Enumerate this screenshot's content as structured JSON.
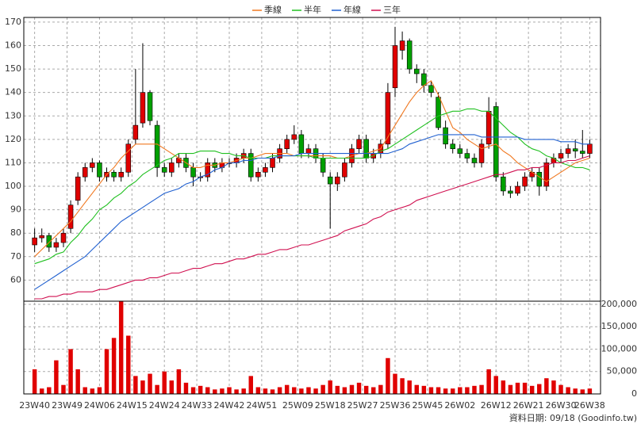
{
  "chart_data": [
    {
      "type": "candlestick",
      "x": [
        0,
        2,
        4,
        6,
        8,
        10,
        12,
        14,
        16,
        18,
        20,
        22,
        24,
        26,
        28,
        30,
        32,
        34,
        36,
        38,
        40,
        42,
        44,
        46,
        48,
        50,
        52,
        54,
        56,
        58,
        60,
        62,
        64,
        66,
        68,
        70,
        72,
        74,
        76,
        78,
        80,
        82,
        84,
        86,
        88,
        90,
        92,
        94,
        96,
        98,
        100,
        102,
        104,
        106,
        108,
        110,
        112,
        114,
        116,
        118,
        120,
        122,
        124,
        126,
        128,
        130,
        132,
        134,
        136,
        138,
        140,
        142,
        144,
        146,
        148,
        150,
        152,
        154
      ],
      "open": [
        75,
        78,
        79,
        74,
        76,
        82,
        94,
        104,
        108,
        110,
        104,
        106,
        104,
        106,
        120,
        127,
        140,
        126,
        108,
        106,
        110,
        112,
        108,
        104,
        104,
        110,
        108,
        110,
        110,
        112,
        114,
        104,
        106,
        108,
        112,
        116,
        120,
        122,
        114,
        116,
        112,
        104,
        101,
        104,
        110,
        116,
        120,
        112,
        114,
        118,
        142,
        158,
        162,
        150,
        148,
        143,
        138,
        125,
        118,
        116,
        114,
        112,
        110,
        118,
        134,
        104,
        98,
        97,
        100,
        104,
        106,
        100,
        110,
        112,
        114,
        116,
        115,
        114
      ],
      "high": [
        82,
        82,
        80,
        78,
        82,
        94,
        106,
        110,
        112,
        111,
        108,
        107,
        108,
        120,
        150,
        161,
        141,
        128,
        110,
        112,
        114,
        114,
        110,
        106,
        112,
        112,
        112,
        112,
        114,
        116,
        116,
        108,
        110,
        114,
        118,
        122,
        126,
        124,
        118,
        118,
        114,
        106,
        106,
        112,
        118,
        122,
        122,
        116,
        120,
        144,
        168,
        166,
        163,
        152,
        150,
        145,
        140,
        128,
        120,
        118,
        116,
        114,
        120,
        138,
        136,
        106,
        100,
        102,
        106,
        108,
        108,
        112,
        114,
        116,
        118,
        120,
        124,
        120
      ],
      "low": [
        72,
        76,
        72,
        72,
        74,
        80,
        92,
        102,
        106,
        102,
        102,
        102,
        102,
        104,
        118,
        125,
        126,
        104,
        104,
        104,
        108,
        106,
        100,
        102,
        102,
        106,
        106,
        108,
        108,
        110,
        102,
        102,
        104,
        106,
        110,
        114,
        118,
        112,
        112,
        110,
        104,
        82,
        98,
        102,
        108,
        114,
        110,
        110,
        112,
        116,
        138,
        154,
        148,
        144,
        140,
        138,
        124,
        116,
        114,
        112,
        110,
        108,
        108,
        116,
        102,
        96,
        95,
        96,
        98,
        102,
        96,
        98,
        108,
        110,
        112,
        112,
        112,
        112
      ],
      "close": [
        78,
        79,
        74,
        76,
        80,
        92,
        104,
        108,
        110,
        104,
        106,
        104,
        106,
        118,
        126,
        140,
        128,
        108,
        106,
        110,
        112,
        108,
        104,
        104,
        110,
        108,
        110,
        110,
        112,
        114,
        104,
        106,
        108,
        112,
        116,
        120,
        122,
        114,
        116,
        112,
        106,
        101,
        104,
        110,
        116,
        120,
        112,
        114,
        118,
        140,
        160,
        162,
        150,
        148,
        143,
        140,
        125,
        118,
        116,
        114,
        112,
        110,
        118,
        132,
        104,
        98,
        97,
        100,
        104,
        106,
        100,
        110,
        112,
        114,
        116,
        115,
        114,
        118
      ],
      "up_color": "#e00000",
      "down_color": "#00a000",
      "series": [
        {
          "name": "季線",
          "color": "#f07820",
          "values": [
            70,
            73,
            76,
            79,
            82,
            85,
            89,
            93,
            97,
            101,
            105,
            108,
            112,
            115,
            118,
            118,
            118,
            118,
            116,
            114,
            112,
            110,
            108,
            108,
            109,
            109,
            110,
            110,
            111,
            112,
            112,
            113,
            114,
            114,
            114,
            114,
            113,
            113,
            113,
            113,
            113,
            113,
            112,
            112,
            113,
            114,
            114,
            115,
            116,
            121,
            126,
            131,
            136,
            140,
            143,
            145,
            139,
            132,
            125,
            123,
            120,
            118,
            116,
            117,
            118,
            115,
            113,
            110,
            108,
            106,
            104,
            102,
            104,
            106,
            108,
            110,
            111,
            112
          ]
        },
        {
          "name": "半年",
          "color": "#20c020",
          "values": [
            67,
            68,
            69,
            71,
            72,
            76,
            79,
            83,
            86,
            90,
            92,
            95,
            97,
            100,
            102,
            105,
            107,
            109,
            111,
            112,
            114,
            114,
            114,
            115,
            115,
            115,
            114,
            114,
            113,
            113,
            112,
            112,
            112,
            113,
            113,
            113,
            113,
            113,
            113,
            112,
            112,
            112,
            112,
            112,
            112,
            112,
            112,
            113,
            115,
            116,
            118,
            120,
            122,
            124,
            126,
            128,
            130,
            131,
            132,
            132,
            133,
            133,
            132,
            132,
            129,
            126,
            123,
            121,
            118,
            116,
            115,
            113,
            112,
            110,
            109,
            108,
            108,
            107
          ]
        },
        {
          "name": "年線",
          "color": "#2060d0",
          "values": [
            56,
            58,
            60,
            62,
            64,
            66,
            68,
            70,
            73,
            76,
            79,
            82,
            85,
            87,
            89,
            91,
            93,
            95,
            97,
            98,
            99,
            101,
            102,
            104,
            105,
            107,
            108,
            110,
            110,
            111,
            111,
            112,
            112,
            112,
            113,
            113,
            113,
            114,
            114,
            114,
            114,
            114,
            114,
            114,
            114,
            114,
            114,
            114,
            114,
            114,
            115,
            116,
            118,
            119,
            120,
            121,
            122,
            122,
            122,
            122,
            122,
            122,
            121,
            121,
            121,
            121,
            121,
            121,
            120,
            120,
            120,
            120,
            120,
            119,
            119,
            119,
            118,
            118
          ]
        },
        {
          "name": "三年",
          "color": "#d01050",
          "values": [
            52,
            52,
            53,
            53,
            54,
            54,
            55,
            55,
            55,
            56,
            56,
            57,
            58,
            59,
            60,
            60,
            61,
            61,
            62,
            63,
            63,
            64,
            65,
            65,
            66,
            67,
            67,
            68,
            69,
            69,
            70,
            71,
            71,
            72,
            73,
            73,
            74,
            75,
            75,
            76,
            77,
            78,
            79,
            81,
            82,
            83,
            84,
            86,
            87,
            89,
            90,
            91,
            92,
            94,
            95,
            96,
            97,
            98,
            99,
            100,
            101,
            102,
            103,
            104,
            105,
            105,
            106,
            107,
            107,
            108,
            108,
            109,
            110,
            110,
            111,
            111,
            112,
            113
          ]
        }
      ],
      "xlim": [
        -3,
        157
      ],
      "ylim": [
        51,
        172
      ],
      "yticks": [
        60,
        70,
        80,
        90,
        100,
        110,
        120,
        130,
        140,
        150,
        160,
        170
      ],
      "grid": true,
      "legend": "top"
    },
    {
      "type": "bar",
      "x": [
        0,
        2,
        4,
        6,
        8,
        10,
        12,
        14,
        16,
        18,
        20,
        22,
        24,
        26,
        28,
        30,
        32,
        34,
        36,
        38,
        40,
        42,
        44,
        46,
        48,
        50,
        52,
        54,
        56,
        58,
        60,
        62,
        64,
        66,
        68,
        70,
        72,
        74,
        76,
        78,
        80,
        82,
        84,
        86,
        88,
        90,
        92,
        94,
        96,
        98,
        100,
        102,
        104,
        106,
        108,
        110,
        112,
        114,
        116,
        118,
        120,
        122,
        124,
        126,
        128,
        130,
        132,
        134,
        136,
        138,
        140,
        142,
        144,
        146,
        148,
        150,
        152,
        154
      ],
      "values": [
        55000,
        12000,
        15000,
        75000,
        20000,
        100000,
        55000,
        15000,
        12000,
        15000,
        100000,
        125000,
        215000,
        130000,
        40000,
        30000,
        45000,
        20000,
        50000,
        30000,
        55000,
        25000,
        15000,
        18000,
        15000,
        10000,
        12000,
        15000,
        10000,
        12000,
        40000,
        15000,
        12000,
        10000,
        15000,
        20000,
        15000,
        12000,
        15000,
        12000,
        20000,
        30000,
        18000,
        15000,
        20000,
        25000,
        18000,
        15000,
        20000,
        80000,
        45000,
        35000,
        30000,
        20000,
        18000,
        15000,
        15000,
        12000,
        12000,
        15000,
        15000,
        18000,
        20000,
        55000,
        40000,
        30000,
        20000,
        25000,
        25000,
        18000,
        22000,
        35000,
        30000,
        20000,
        15000,
        12000,
        10000,
        12000
      ],
      "color": "#e00000",
      "xlim": [
        -3,
        157
      ],
      "ylim": [
        0,
        207000
      ],
      "xticks": [
        {
          "value": 0,
          "label": "23W40"
        },
        {
          "value": 9,
          "label": "23W49"
        },
        {
          "value": 18,
          "label": "24W06"
        },
        {
          "value": 27,
          "label": "24W15"
        },
        {
          "value": 36,
          "label": "24W24"
        },
        {
          "value": 45,
          "label": "24W33"
        },
        {
          "value": 54,
          "label": "24W42"
        },
        {
          "value": 63,
          "label": "24W51"
        },
        {
          "value": 73,
          "label": "25W09"
        },
        {
          "value": 82,
          "label": "25W18"
        },
        {
          "value": 91,
          "label": "25W27"
        },
        {
          "value": 100,
          "label": "25W36"
        },
        {
          "value": 109,
          "label": "25W45"
        },
        {
          "value": 118,
          "label": "26W02"
        },
        {
          "value": 128,
          "label": "26W12"
        },
        {
          "value": 137,
          "label": "26W21"
        },
        {
          "value": 146,
          "label": "26W30"
        },
        {
          "value": 154,
          "label": "26W38"
        }
      ],
      "yticks": [
        0,
        {
          "value": 50000,
          "label": "50,000"
        },
        {
          "value": 100000,
          "label": "100,000"
        },
        {
          "value": 150000,
          "label": "150,000"
        },
        {
          "value": 200000,
          "label": "200,000"
        }
      ],
      "grid": true,
      "note": "資料日期: 09/18 (Goodinfo.tw)"
    }
  ]
}
